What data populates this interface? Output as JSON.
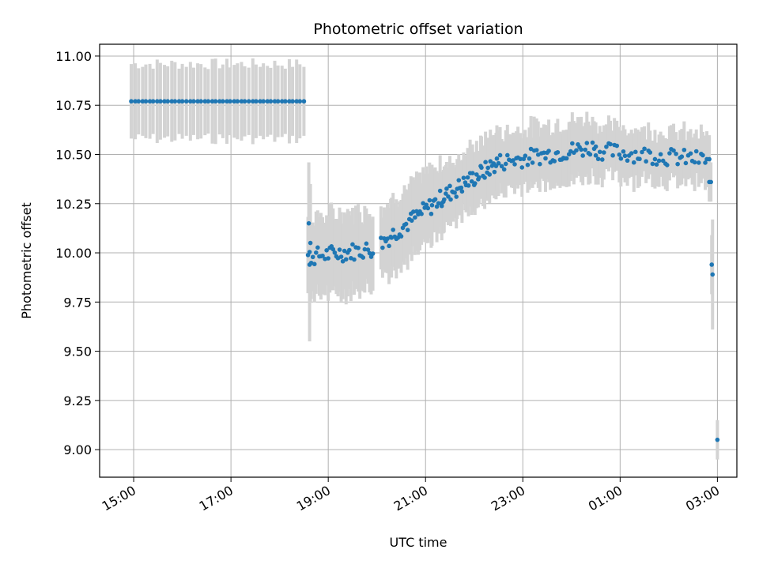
{
  "chart_data": {
    "type": "scatter",
    "title": "Photometric offset variation",
    "xlabel": "UTC time",
    "ylabel": "Photometric offset",
    "x_axis_type": "time",
    "x_start": "15:00",
    "x_end": "03:00",
    "xlim": [
      "14:18",
      "03:24"
    ],
    "ylim": [
      8.86,
      11.06
    ],
    "x_ticks": [
      "15:00",
      "17:00",
      "19:00",
      "21:00",
      "23:00",
      "01:00",
      "03:00"
    ],
    "y_ticks": [
      "9.00",
      "9.25",
      "9.50",
      "9.75",
      "10.00",
      "10.25",
      "10.50",
      "10.75",
      "11.00"
    ],
    "grid": true,
    "marker_color": "#1f77b4",
    "errorbar_color": "#d3d3d3",
    "series": [
      {
        "segments": [
          {
            "x_start": "14:57",
            "x_end": "18:30",
            "y": 10.77,
            "yerr": 0.19,
            "count": 48
          },
          {
            "x_start": "18:35",
            "x_end": "19:55",
            "y_start": 9.98,
            "y_end": 10.02,
            "yerr": 0.2,
            "count": 40
          },
          {
            "x_start": "20:05",
            "x_end": "21:20",
            "y_start": 10.05,
            "y_end": 10.28,
            "yerr": 0.18,
            "count": 40
          },
          {
            "x_start": "21:20",
            "x_end": "22:30",
            "y_start": 10.28,
            "y_end": 10.46,
            "yerr": 0.15,
            "count": 45
          },
          {
            "x_start": "22:30",
            "x_end": "00:30",
            "y_start": 10.46,
            "y_end": 10.54,
            "yerr": 0.15,
            "count": 55
          },
          {
            "x_start": "00:30",
            "x_end": "02:50",
            "y_start": 10.52,
            "y_end": 10.47,
            "yerr": 0.13,
            "count": 55
          }
        ],
        "points": [
          {
            "x": "18:36",
            "y": 10.15,
            "yerr": 0.31
          },
          {
            "x": "18:37",
            "y": 9.94,
            "yerr": 0.39
          },
          {
            "x": "18:38",
            "y": 10.05,
            "yerr": 0.3
          },
          {
            "x": "02:50",
            "y": 10.36,
            "yerr": 0.1
          },
          {
            "x": "02:52",
            "y": 10.36,
            "yerr": 0.1
          },
          {
            "x": "02:53",
            "y": 9.94,
            "yerr": 0.15
          },
          {
            "x": "02:54",
            "y": 9.89,
            "yerr": 0.28
          },
          {
            "x": "03:00",
            "y": 9.05,
            "yerr": 0.1
          }
        ]
      }
    ]
  }
}
